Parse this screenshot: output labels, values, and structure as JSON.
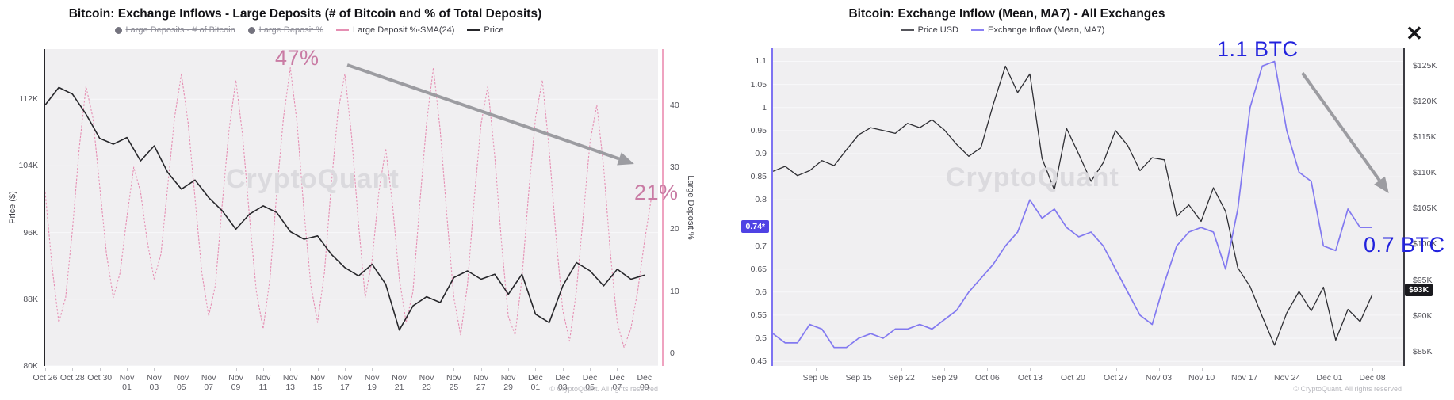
{
  "ui": {
    "close_icon": "✕"
  },
  "chart_data": [
    {
      "type": "line",
      "title": "Bitcoin: Exchange Inflows - Large Deposits (# of Bitcoin and % of Total Deposits)",
      "watermark": "CryptoQuant",
      "copyright": "© CryptoQuant. All rights reserved",
      "legend": [
        {
          "label": "Large Deposits - # of Bitcoin",
          "marker": "dot",
          "color": "#74737e",
          "struck": true
        },
        {
          "label": "Large Deposit %",
          "marker": "dot",
          "color": "#74737e",
          "struck": true
        },
        {
          "label": "Large Deposit %-SMA(24)",
          "marker": "line",
          "color": "#e58fb3",
          "struck": false
        },
        {
          "label": "Price",
          "marker": "line",
          "color": "#26262a",
          "struck": false
        }
      ],
      "y_left": {
        "label": "Price ($)",
        "ylim": [
          80,
          118
        ],
        "ticks": [
          {
            "t": "112K",
            "v": 112
          },
          {
            "t": "104K",
            "v": 104
          },
          {
            "t": "96K",
            "v": 96
          },
          {
            "t": "88K",
            "v": 88
          },
          {
            "t": "80K",
            "v": 80
          }
        ]
      },
      "y_right": {
        "label": "Large Deposit %",
        "ylim": [
          -2,
          49
        ],
        "ticks": [
          {
            "t": "40",
            "v": 40
          },
          {
            "t": "30",
            "v": 30
          },
          {
            "t": "20",
            "v": 20
          },
          {
            "t": "10",
            "v": 10
          },
          {
            "t": "0",
            "v": 0
          }
        ]
      },
      "x_ticks": [
        {
          "t": "Oct 26",
          "p": 0.0,
          "two": false
        },
        {
          "t": "Oct 28",
          "p": 0.0444,
          "two": false
        },
        {
          "t": "Oct 30",
          "p": 0.0889,
          "two": false
        },
        {
          "t": "Nov 01",
          "p": 0.1333,
          "two": true
        },
        {
          "t": "Nov 03",
          "p": 0.1778,
          "two": true
        },
        {
          "t": "Nov 05",
          "p": 0.2222,
          "two": true
        },
        {
          "t": "Nov 07",
          "p": 0.2667,
          "two": true
        },
        {
          "t": "Nov 09",
          "p": 0.3111,
          "two": true
        },
        {
          "t": "Nov 11",
          "p": 0.3556,
          "two": true
        },
        {
          "t": "Nov 13",
          "p": 0.4,
          "two": true
        },
        {
          "t": "Nov 15",
          "p": 0.4444,
          "two": true
        },
        {
          "t": "Nov 17",
          "p": 0.4889,
          "two": true
        },
        {
          "t": "Nov 19",
          "p": 0.5333,
          "two": true
        },
        {
          "t": "Nov 21",
          "p": 0.5778,
          "two": true
        },
        {
          "t": "Nov 23",
          "p": 0.6222,
          "two": true
        },
        {
          "t": "Nov 25",
          "p": 0.6667,
          "two": true
        },
        {
          "t": "Nov 27",
          "p": 0.7111,
          "two": true
        },
        {
          "t": "Nov 29",
          "p": 0.7556,
          "two": true
        },
        {
          "t": "Dec 01",
          "p": 0.8,
          "two": true
        },
        {
          "t": "Dec 03",
          "p": 0.8444,
          "two": true
        },
        {
          "t": "Dec 05",
          "p": 0.8889,
          "two": true
        },
        {
          "t": "Dec 07",
          "p": 0.9333,
          "two": true
        },
        {
          "t": "Dec 09",
          "p": 0.9778,
          "two": true
        }
      ],
      "series": [
        {
          "name": "Large Deposit %-SMA(24)",
          "axis": "right",
          "color": "#e58fb3",
          "width": 1.1,
          "dash": "2.5 2",
          "xend": 0.989,
          "values": [
            26,
            14,
            5,
            9,
            20,
            33,
            43,
            38,
            27,
            16,
            9,
            13,
            22,
            30,
            26,
            18,
            12,
            16,
            27,
            38,
            45,
            37,
            25,
            13,
            6,
            11,
            24,
            36,
            44,
            35,
            22,
            10,
            4,
            12,
            26,
            38,
            46,
            37,
            23,
            11,
            5,
            13,
            27,
            39,
            45,
            35,
            21,
            9,
            15,
            26,
            33,
            24,
            12,
            5,
            10,
            24,
            37,
            46,
            36,
            22,
            9,
            3,
            11,
            25,
            37,
            43,
            32,
            18,
            6,
            3,
            12,
            26,
            38,
            44,
            33,
            19,
            7,
            2,
            10,
            22,
            34,
            40,
            30,
            16,
            5,
            1,
            4,
            10,
            18,
            25
          ]
        },
        {
          "name": "Price",
          "axis": "left",
          "color": "#26262a",
          "width": 1.6,
          "dash": null,
          "xend": 0.978,
          "values": [
            111.3,
            113.4,
            112.6,
            110.2,
            107.3,
            106.6,
            107.4,
            104.6,
            106.4,
            103.2,
            101.2,
            102.3,
            100.2,
            98.6,
            96.4,
            98.2,
            99.2,
            98.4,
            96.1,
            95.2,
            95.6,
            93.4,
            91.8,
            90.8,
            92.2,
            89.8,
            84.3,
            87.2,
            88.3,
            87.6,
            90.6,
            91.4,
            90.4,
            91.0,
            88.6,
            91.0,
            86.2,
            85.2,
            89.6,
            92.4,
            91.4,
            89.6,
            91.6,
            90.4,
            90.9
          ]
        }
      ],
      "annotations": [
        {
          "text": "47%"
        },
        {
          "text": "21%"
        }
      ],
      "arrow": {
        "from": [
          0.493,
          0.05
        ],
        "to": [
          0.961,
          0.3625
        ]
      }
    },
    {
      "type": "line",
      "title": "Bitcoin: Exchange Inflow (Mean, MA7) - All Exchanges",
      "watermark": "CryptoQuant",
      "copyright": "© CryptoQuant. All rights reserved",
      "legend": [
        {
          "label": "Price USD",
          "marker": "line",
          "color": "#55555c",
          "struck": false
        },
        {
          "label": "Exchange Inflow (Mean, MA7)",
          "marker": "line",
          "color": "#8a80f4",
          "struck": false
        }
      ],
      "y_left": {
        "label": "",
        "ylim": [
          0.44,
          1.13
        ],
        "badge": {
          "text": "0.74*",
          "value": 0.74,
          "bg": "#4f42e4"
        },
        "ticks": [
          {
            "t": "1.1",
            "v": 1.1
          },
          {
            "t": "1.05",
            "v": 1.05
          },
          {
            "t": "1",
            "v": 1
          },
          {
            "t": "0.95",
            "v": 0.95
          },
          {
            "t": "0.9",
            "v": 0.9
          },
          {
            "t": "0.85",
            "v": 0.85
          },
          {
            "t": "0.8",
            "v": 0.8
          },
          {
            "t": "0.7",
            "v": 0.7
          },
          {
            "t": "0.65",
            "v": 0.65
          },
          {
            "t": "0.6",
            "v": 0.6
          },
          {
            "t": "0.55",
            "v": 0.55
          },
          {
            "t": "0.5",
            "v": 0.5
          },
          {
            "t": "0.45",
            "v": 0.45
          }
        ]
      },
      "y_right": {
        "label": "",
        "ylim": [
          83,
          127.5
        ],
        "badge": {
          "text": "$93K",
          "value": 93.5,
          "bg": "#1a1a1e"
        },
        "ticks": [
          {
            "t": "$125K",
            "v": 125
          },
          {
            "t": "$120K",
            "v": 120
          },
          {
            "t": "$115K",
            "v": 115
          },
          {
            "t": "$110K",
            "v": 110
          },
          {
            "t": "$105K",
            "v": 105
          },
          {
            "t": "$100K",
            "v": 100
          },
          {
            "t": "$95K",
            "v": 95
          },
          {
            "t": "$90K",
            "v": 90
          },
          {
            "t": "$85K",
            "v": 85
          }
        ]
      },
      "x_ticks": [
        {
          "t": "Sep 08",
          "p": 0.068,
          "two": false
        },
        {
          "t": "Sep 15",
          "p": 0.136,
          "two": false
        },
        {
          "t": "Sep 22",
          "p": 0.204,
          "two": false
        },
        {
          "t": "Sep 29",
          "p": 0.272,
          "two": false
        },
        {
          "t": "Oct 06",
          "p": 0.34,
          "two": false
        },
        {
          "t": "Oct 13",
          "p": 0.408,
          "two": false
        },
        {
          "t": "Oct 20",
          "p": 0.476,
          "two": false
        },
        {
          "t": "Oct 27",
          "p": 0.544,
          "two": false
        },
        {
          "t": "Nov 03",
          "p": 0.612,
          "two": false
        },
        {
          "t": "Nov 10",
          "p": 0.68,
          "two": false
        },
        {
          "t": "Nov 17",
          "p": 0.748,
          "two": false
        },
        {
          "t": "Nov 24",
          "p": 0.816,
          "two": false
        },
        {
          "t": "Dec 01",
          "p": 0.883,
          "two": false
        },
        {
          "t": "Dec 08",
          "p": 0.951,
          "two": false
        }
      ],
      "series": [
        {
          "name": "Price USD",
          "axis": "right",
          "color": "#2e2e33",
          "width": 1.3,
          "dash": null,
          "xend": 0.951,
          "values": [
            110.2,
            110.9,
            109.6,
            110.3,
            111.7,
            111.0,
            113.2,
            115.3,
            116.3,
            115.9,
            115.5,
            116.9,
            116.3,
            117.4,
            116.0,
            114.0,
            112.3,
            113.5,
            119.5,
            124.9,
            121.2,
            123.8,
            112.0,
            107.6,
            116.2,
            112.6,
            108.8,
            111.4,
            115.9,
            113.8,
            110.3,
            112.1,
            111.8,
            103.9,
            105.5,
            103.2,
            107.9,
            104.6,
            96.7,
            94.1,
            89.9,
            85.9,
            90.4,
            93.4,
            90.7,
            94.0,
            86.6,
            90.9,
            89.2,
            93.0
          ]
        },
        {
          "name": "Exchange Inflow (Mean, MA7)",
          "axis": "left",
          "color": "#8279f0",
          "width": 1.7,
          "dash": null,
          "xend": 0.951,
          "values": [
            0.51,
            0.49,
            0.49,
            0.53,
            0.52,
            0.48,
            0.48,
            0.5,
            0.51,
            0.5,
            0.52,
            0.52,
            0.53,
            0.52,
            0.54,
            0.56,
            0.6,
            0.63,
            0.66,
            0.7,
            0.73,
            0.8,
            0.76,
            0.78,
            0.74,
            0.72,
            0.73,
            0.7,
            0.65,
            0.6,
            0.55,
            0.53,
            0.62,
            0.7,
            0.73,
            0.74,
            0.73,
            0.65,
            0.78,
            1.0,
            1.09,
            1.1,
            0.95,
            0.86,
            0.84,
            0.7,
            0.69,
            0.78,
            0.74,
            0.74
          ]
        }
      ],
      "annotations": [
        {
          "text": "1.1 BTC"
        },
        {
          "text": "0.7 BTC"
        }
      ],
      "arrow": {
        "from": [
          0.84,
          0.08
        ],
        "to": [
          0.977,
          0.4577
        ]
      }
    }
  ]
}
